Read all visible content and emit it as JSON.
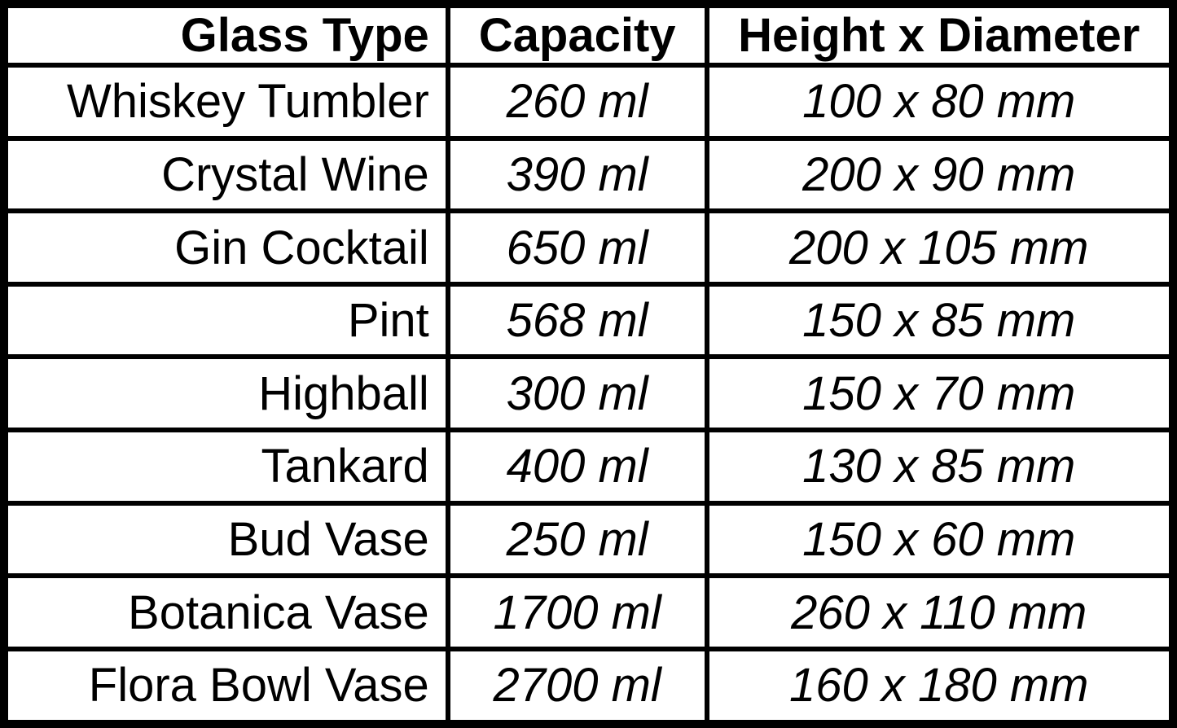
{
  "table": {
    "headers": {
      "glass_type": "Glass Type",
      "capacity": "Capacity",
      "dimensions": "Height x Diameter"
    },
    "rows": [
      {
        "glass_type": "Whiskey Tumbler",
        "capacity": "260 ml",
        "dimensions": "100 x 80 mm"
      },
      {
        "glass_type": "Crystal Wine",
        "capacity": "390 ml",
        "dimensions": "200 x 90 mm"
      },
      {
        "glass_type": "Gin Cocktail",
        "capacity": "650 ml",
        "dimensions": "200 x 105 mm"
      },
      {
        "glass_type": "Pint",
        "capacity": "568 ml",
        "dimensions": "150 x 85 mm"
      },
      {
        "glass_type": "Highball",
        "capacity": "300 ml",
        "dimensions": "150 x 70 mm"
      },
      {
        "glass_type": "Tankard",
        "capacity": "400 ml",
        "dimensions": "130 x 85 mm"
      },
      {
        "glass_type": "Bud Vase",
        "capacity": "250 ml",
        "dimensions": "150 x 60 mm"
      },
      {
        "glass_type": "Botanica Vase",
        "capacity": "1700 ml",
        "dimensions": "260 x 110 mm"
      },
      {
        "glass_type": "Flora Bowl Vase",
        "capacity": "2700 ml",
        "dimensions": "160 x 180 mm"
      }
    ]
  },
  "colors": {
    "border": "#000000",
    "text": "#000000",
    "background": "#ffffff"
  },
  "chart_data": {
    "type": "table",
    "title": "",
    "columns": [
      "Glass Type",
      "Capacity",
      "Height x Diameter"
    ],
    "rows": [
      [
        "Whiskey Tumbler",
        "260 ml",
        "100 x 80 mm"
      ],
      [
        "Crystal Wine",
        "390 ml",
        "200 x 90 mm"
      ],
      [
        "Gin Cocktail",
        "650 ml",
        "200 x 105 mm"
      ],
      [
        "Pint",
        "568 ml",
        "150 x 85 mm"
      ],
      [
        "Highball",
        "300 ml",
        "150 x 70 mm"
      ],
      [
        "Tankard",
        "400 ml",
        "130 x 85 mm"
      ],
      [
        "Bud Vase",
        "250 ml",
        "150 x 60 mm"
      ],
      [
        "Botanica Vase",
        "1700 ml",
        "260 x 110 mm"
      ],
      [
        "Flora Bowl Vase",
        "2700 ml",
        "160 x 180 mm"
      ]
    ]
  }
}
